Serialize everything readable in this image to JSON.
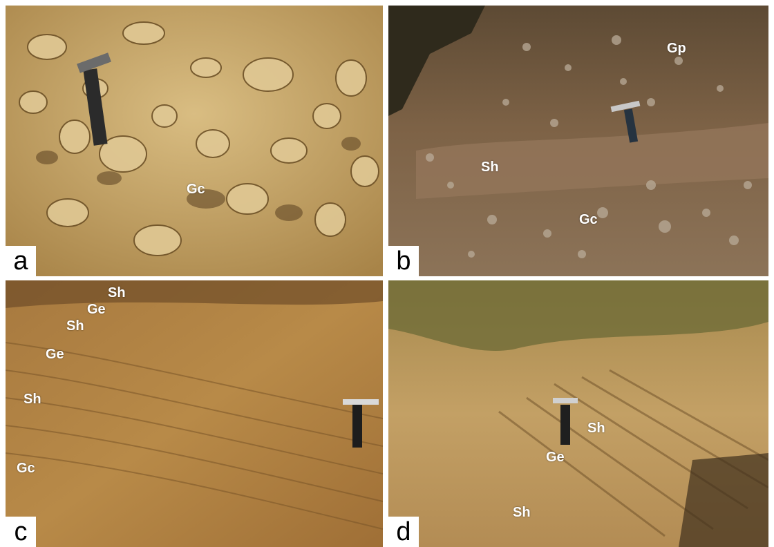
{
  "figure": {
    "panels": [
      {
        "id": "a",
        "letter": "a",
        "labels": [
          "Gc"
        ],
        "tone": "#c9a96a"
      },
      {
        "id": "b",
        "letter": "b",
        "labels": [
          "Gp",
          "Sh",
          "Gc"
        ],
        "tone": "#8b6e4e"
      },
      {
        "id": "c",
        "letter": "c",
        "labels": [
          "Sh",
          "Ge",
          "Sh",
          "Ge",
          "Sh",
          "Gc"
        ],
        "tone": "#b0803f"
      },
      {
        "id": "d",
        "letter": "d",
        "labels": [
          "Sh",
          "Ge",
          "Sh"
        ],
        "tone": "#c09a5a"
      }
    ]
  }
}
